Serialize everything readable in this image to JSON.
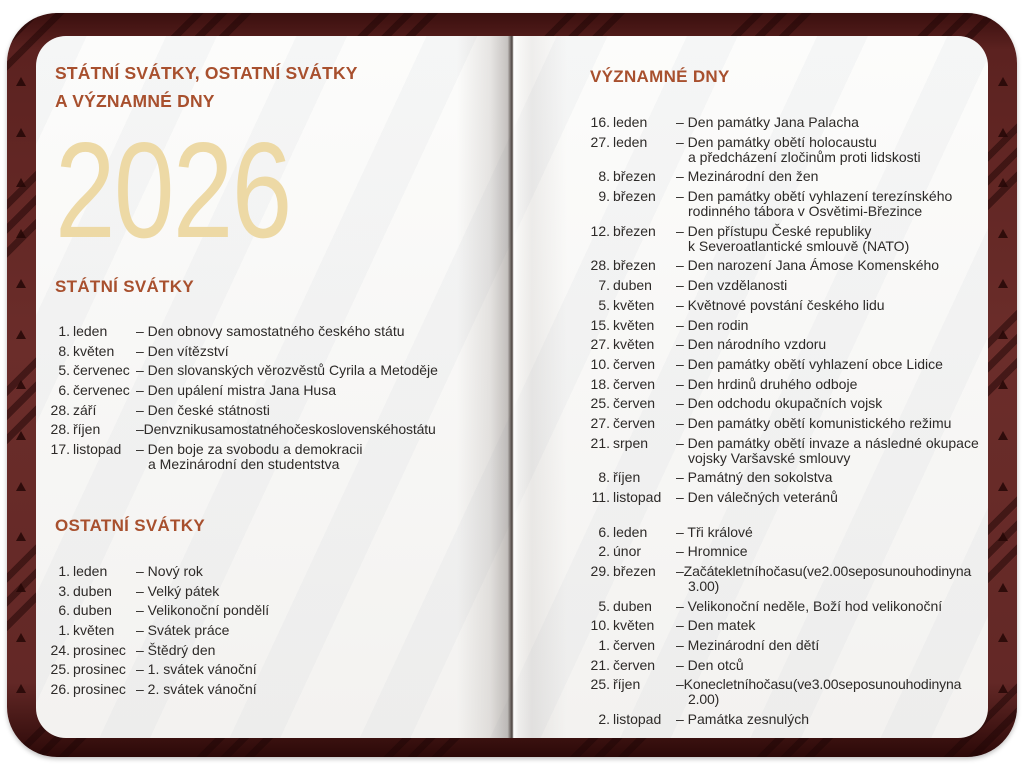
{
  "colors": {
    "heading": "#a8502e",
    "year": "#edd9a5",
    "text": "#2d2a28",
    "cover_base": "#6b2d2a",
    "cover_dark": "#3a0f0e",
    "page_light": "#fcfcfb",
    "page_shade": "#f3f2f0"
  },
  "left_page": {
    "title": "STÁTNÍ SVÁTKY, OSTATNÍ SVÁTKY\nA VÝZNAMNÉ DNY",
    "year": "2026",
    "statni": {
      "heading": "STÁTNÍ SVÁTKY",
      "rows": [
        {
          "day": "1.",
          "month": "leden",
          "desc": "– Den obnovy samostatného českého státu"
        },
        {
          "day": "8.",
          "month": "květen",
          "desc": "– Den vítězství"
        },
        {
          "day": "5.",
          "month": "červenec",
          "desc": "– Den slovanských věrozvěstů Cyrila a Metoděje"
        },
        {
          "day": "6.",
          "month": "červenec",
          "desc": "– Den upálení mistra Jana Husa"
        },
        {
          "day": "28.",
          "month": "září",
          "desc": "– Den české státnosti"
        },
        {
          "day": "28.",
          "month": "říjen",
          "desc": "– Den vzniku samostatného československého státu",
          "tight": true
        },
        {
          "day": "17.",
          "month": "listopad",
          "desc": "– Den boje za svobodu a demokracii\na Mezinárodní den studentstva"
        }
      ]
    },
    "ostatni": {
      "heading": "OSTATNÍ SVÁTKY",
      "rows": [
        {
          "day": "1.",
          "month": "leden",
          "desc": "– Nový rok"
        },
        {
          "day": "3.",
          "month": "duben",
          "desc": "– Velký pátek"
        },
        {
          "day": "6.",
          "month": "duben",
          "desc": "– Velikonoční pondělí"
        },
        {
          "day": "1.",
          "month": "květen",
          "desc": "– Svátek práce"
        },
        {
          "day": "24.",
          "month": "prosinec",
          "desc": "– Štědrý den"
        },
        {
          "day": "25.",
          "month": "prosinec",
          "desc": "– 1. svátek vánoční"
        },
        {
          "day": "26.",
          "month": "prosinec",
          "desc": "– 2. svátek vánoční"
        }
      ]
    }
  },
  "right_page": {
    "vyznamne": {
      "heading": "VÝZNAMNÉ DNY",
      "rows": [
        {
          "day": "16.",
          "month": "leden",
          "desc": "– Den památky Jana Palacha"
        },
        {
          "day": "27.",
          "month": "leden",
          "desc": "– Den památky obětí holocaustu\na předcházení zločinům proti lidskosti"
        },
        {
          "day": "8.",
          "month": "březen",
          "desc": "– Mezinárodní den žen"
        },
        {
          "day": "9.",
          "month": "březen",
          "desc": "– Den památky obětí vyhlazení terezínského\nrodinného tábora v Osvětimi-Březince"
        },
        {
          "day": "12.",
          "month": "březen",
          "desc": "– Den přístupu České republiky\nk Severoatlantické smlouvě (NATO)"
        },
        {
          "day": "28.",
          "month": "březen",
          "desc": "– Den narození Jana Ámose Komenského"
        },
        {
          "day": "7.",
          "month": "duben",
          "desc": "– Den vzdělanosti"
        },
        {
          "day": "5.",
          "month": "květen",
          "desc": "– Květnové povstání českého lidu"
        },
        {
          "day": "15.",
          "month": "květen",
          "desc": "– Den rodin"
        },
        {
          "day": "27.",
          "month": "květen",
          "desc": "– Den národního vzdoru"
        },
        {
          "day": "10.",
          "month": "červen",
          "desc": "– Den památky obětí vyhlazení obce Lidice"
        },
        {
          "day": "18.",
          "month": "červen",
          "desc": "– Den hrdinů druhého odboje"
        },
        {
          "day": "25.",
          "month": "červen",
          "desc": "– Den odchodu okupačních vojsk"
        },
        {
          "day": "27.",
          "month": "červen",
          "desc": "– Den památky obětí komunistického režimu"
        },
        {
          "day": "21.",
          "month": "srpen",
          "desc": "– Den památky obětí invaze a následné okupace\nvojsky Varšavské smlouvy"
        },
        {
          "day": "8.",
          "month": "říjen",
          "desc": "– Památný den sokolstva"
        },
        {
          "day": "11.",
          "month": "listopad",
          "desc": "– Den válečných veteránů"
        },
        {
          "day": "6.",
          "month": "leden",
          "desc": "– Tři králové",
          "gap_before": true
        },
        {
          "day": "2.",
          "month": "únor",
          "desc": "– Hromnice"
        },
        {
          "day": "29.",
          "month": "březen",
          "desc": "– Začátek letního času (ve 2.00 se posunou hodiny na 3.00)",
          "tight": true
        },
        {
          "day": "5.",
          "month": "duben",
          "desc": "– Velikonoční neděle, Boží hod velikonoční"
        },
        {
          "day": "10.",
          "month": "květen",
          "desc": "– Den matek"
        },
        {
          "day": "1.",
          "month": "červen",
          "desc": "– Mezinárodní den dětí"
        },
        {
          "day": "21.",
          "month": "červen",
          "desc": "– Den otců"
        },
        {
          "day": "25.",
          "month": "říjen",
          "desc": "– Konec letního času (ve 3.00 se posunou hodiny na 2.00)",
          "tight": true
        },
        {
          "day": "2.",
          "month": "listopad",
          "desc": "– Památka zesnulých"
        }
      ]
    }
  }
}
